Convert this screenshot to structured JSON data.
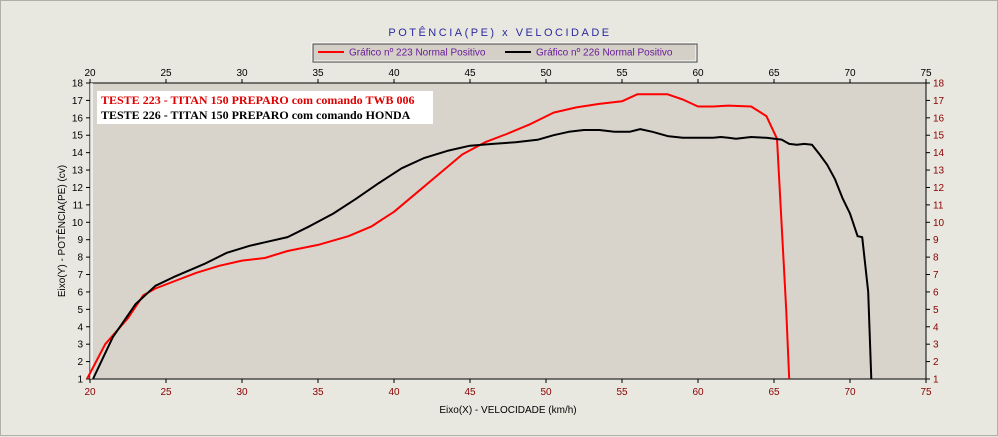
{
  "chart_data": {
    "type": "line",
    "title": "POTÊNCIA(PE)  x  VELOCIDADE",
    "xlabel": "Eixo(X) - VELOCIDADE (km/h)",
    "ylabel": "Eixo(Y) - POTÊNCIA(PE) (cv)",
    "xlim": [
      20,
      75
    ],
    "ylim": [
      1,
      18
    ],
    "xticks": [
      20,
      25,
      30,
      35,
      40,
      45,
      50,
      55,
      60,
      65,
      70,
      75
    ],
    "yticks": [
      1,
      2,
      3,
      4,
      5,
      6,
      7,
      8,
      9,
      10,
      11,
      12,
      13,
      14,
      15,
      16,
      17,
      18
    ],
    "grid": false,
    "legend_position": "top-center",
    "annotations": [
      {
        "text": "TESTE 223 - TITAN 150 PREPARO com comando TWB 006",
        "color": "#e00000"
      },
      {
        "text": "TESTE 226 - TITAN 150 PREPARO com comando HONDA",
        "color": "#000000"
      }
    ],
    "series": [
      {
        "name": "Gráfico nº 223 Normal Positivo",
        "color": "#ff0000",
        "x": [
          19.8,
          21,
          22.5,
          23.5,
          24.3,
          25.5,
          27,
          28.5,
          30,
          31.5,
          33,
          35,
          37,
          38.5,
          40,
          41.5,
          43,
          44.5,
          46,
          47.5,
          49,
          50.5,
          52,
          53.5,
          55,
          56,
          57,
          58,
          59,
          60,
          61,
          62,
          63.5,
          64.5,
          65.2,
          65.8,
          66
        ],
        "y": [
          1,
          3,
          4.5,
          5.8,
          6.2,
          6.6,
          7.1,
          7.5,
          7.8,
          7.95,
          8.35,
          8.7,
          9.2,
          9.75,
          10.6,
          11.7,
          12.8,
          13.9,
          14.6,
          15.1,
          15.65,
          16.3,
          16.6,
          16.8,
          16.95,
          17.35,
          17.35,
          17.35,
          17.05,
          16.65,
          16.65,
          16.7,
          16.65,
          16.1,
          14.8,
          5,
          1
        ]
      },
      {
        "name": "Gráfico nº 226 Normal Positivo",
        "color": "#000000",
        "x": [
          20.2,
          21.5,
          23,
          24.3,
          25.5,
          27.5,
          29,
          30.5,
          31.5,
          33,
          34.5,
          36,
          37.5,
          39,
          40.5,
          42,
          43.5,
          45,
          46.5,
          48,
          49.5,
          50.5,
          51.5,
          52.5,
          53.5,
          54.5,
          55.5,
          56.2,
          57,
          58,
          59,
          60,
          61,
          61.5,
          62,
          62.5,
          63.5,
          64.5,
          65.5,
          66,
          66.5,
          67,
          67.5,
          68,
          68.5,
          69,
          69.5,
          70,
          70.5,
          70.8,
          71.2,
          71.4
        ],
        "y": [
          1,
          3.4,
          5.3,
          6.35,
          6.85,
          7.6,
          8.25,
          8.65,
          8.85,
          9.15,
          9.8,
          10.5,
          11.35,
          12.25,
          13.1,
          13.7,
          14.1,
          14.4,
          14.5,
          14.6,
          14.75,
          15.0,
          15.2,
          15.3,
          15.3,
          15.2,
          15.2,
          15.35,
          15.2,
          14.95,
          14.85,
          14.85,
          14.85,
          14.9,
          14.85,
          14.8,
          14.9,
          14.85,
          14.75,
          14.5,
          14.45,
          14.5,
          14.45,
          13.9,
          13.3,
          12.5,
          11.4,
          10.5,
          9.2,
          9.15,
          6,
          1
        ]
      }
    ]
  }
}
